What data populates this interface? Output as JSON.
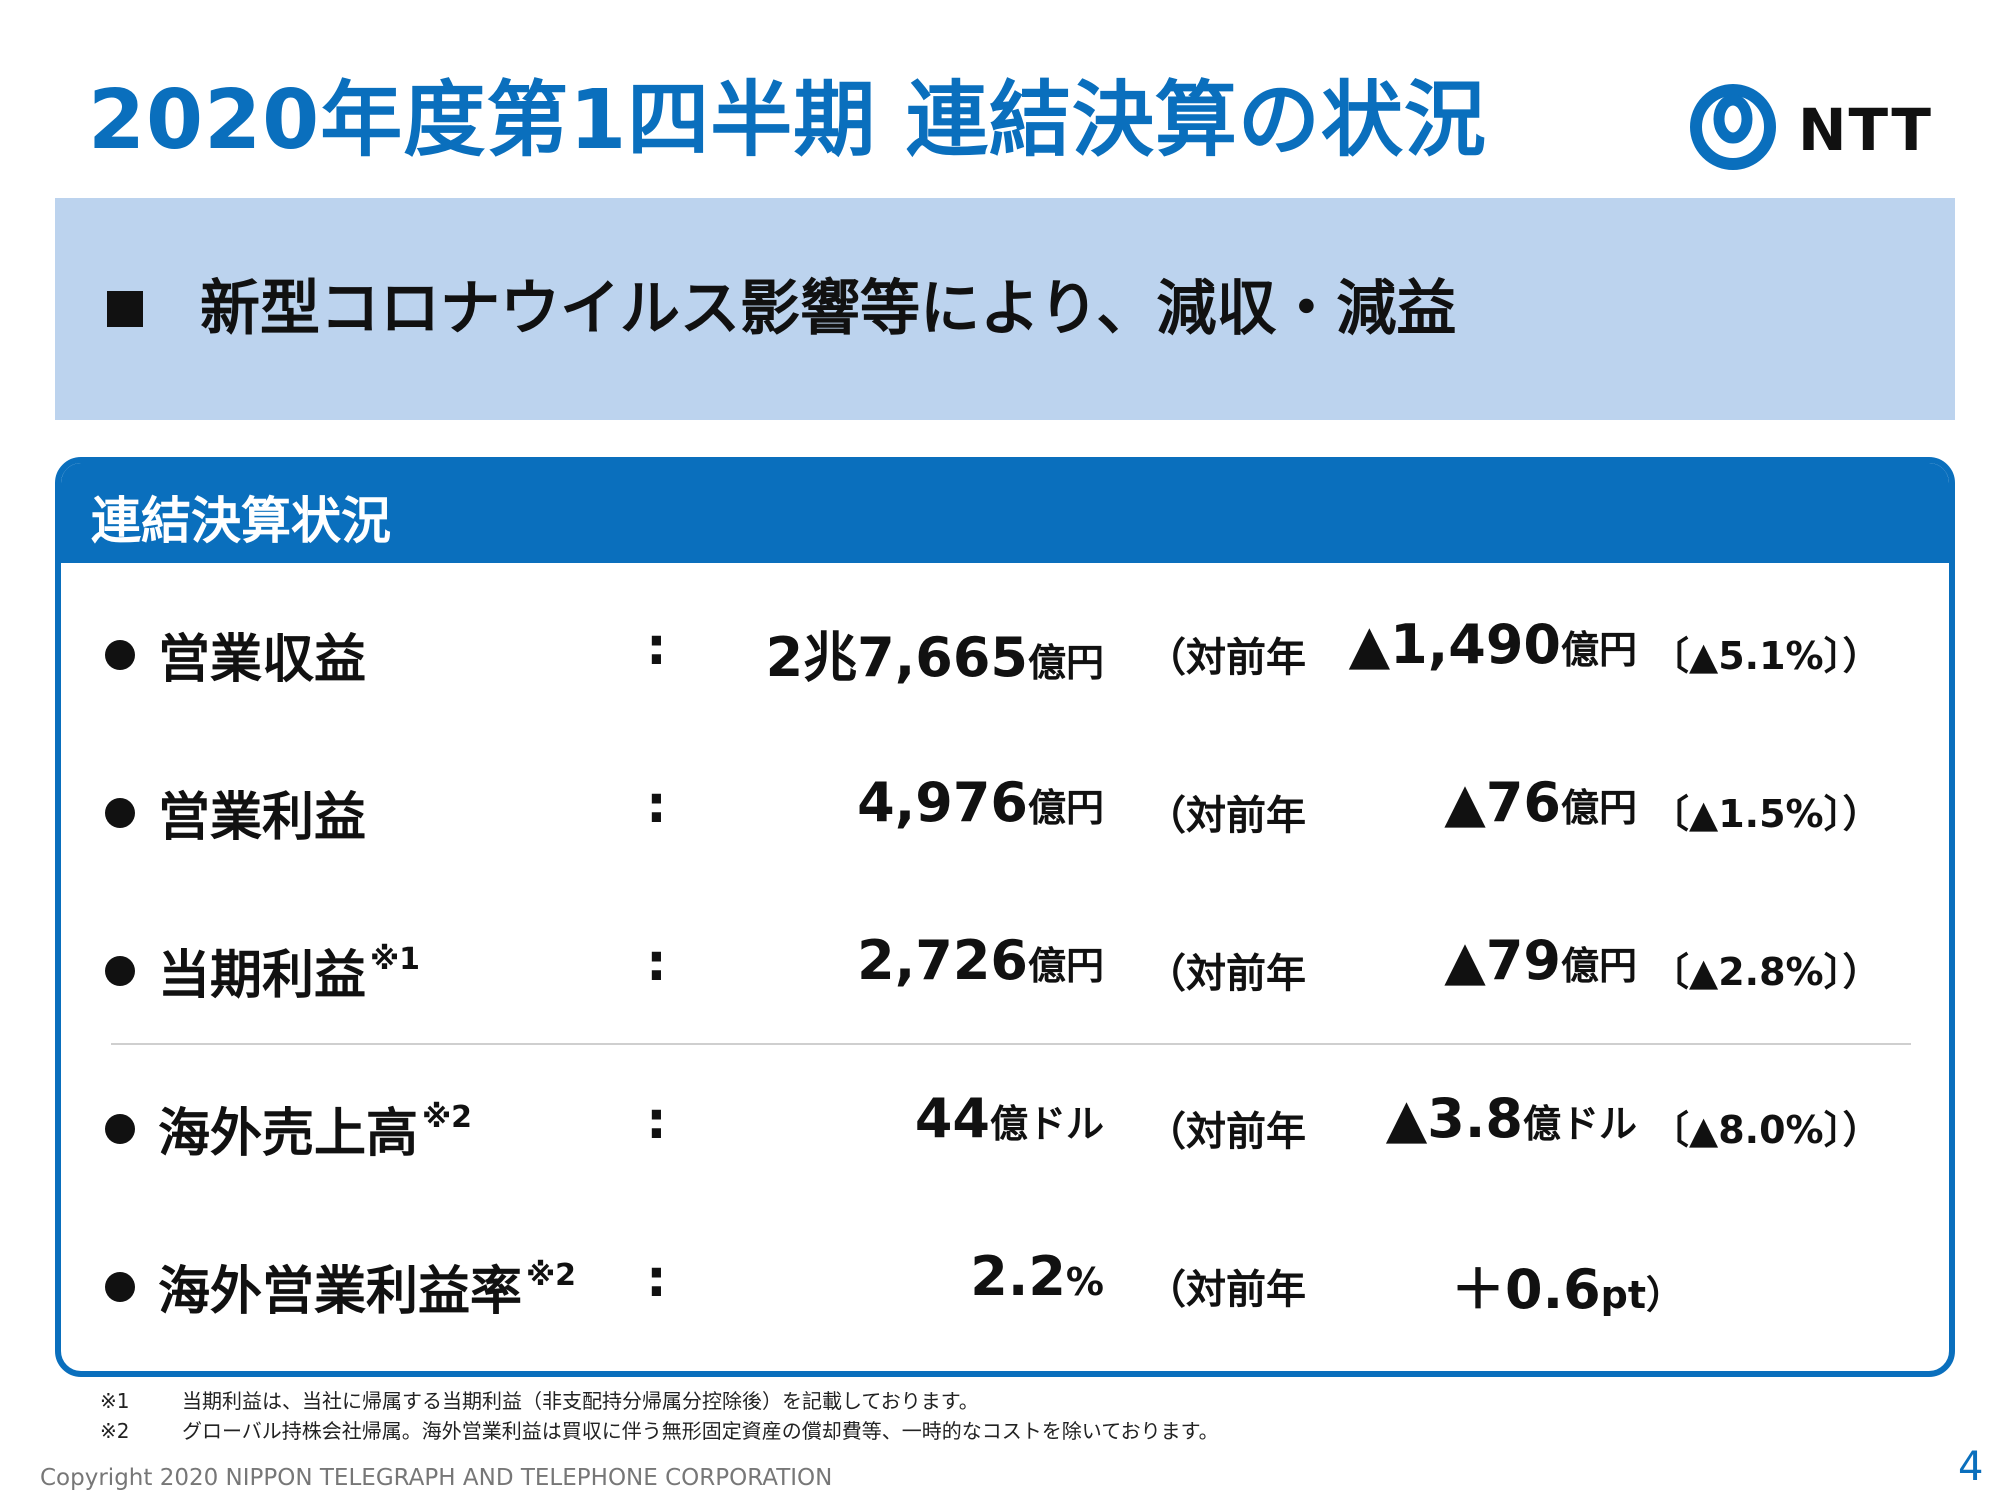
{
  "header": {
    "title": "2020年度第1四半期 連結決算の状況",
    "logo_text": "NTT"
  },
  "summary": {
    "text": "新型コロナウイルス影響等により、減収・減益"
  },
  "panel": {
    "title": "連結決算状況",
    "rows": [
      {
        "label": "営業収益",
        "note": "",
        "colon": ":",
        "value": "2兆7,665",
        "value_unit": "億円",
        "vs_label": "（対前年",
        "delta": "▲1,490",
        "delta_unit": "億円",
        "pct": "〔▲5.1%〕）"
      },
      {
        "label": "営業利益",
        "note": "",
        "colon": ":",
        "value": "4,976",
        "value_unit": "億円",
        "vs_label": "（対前年",
        "delta": "▲76",
        "delta_unit": "億円",
        "pct": "〔▲1.5%〕）"
      },
      {
        "label": "当期利益",
        "note": "※1",
        "colon": ":",
        "value": "2,726",
        "value_unit": "億円",
        "vs_label": "（対前年",
        "delta": "▲79",
        "delta_unit": "億円",
        "pct": "〔▲2.8%〕）"
      },
      {
        "label": "海外売上高",
        "note": "※2",
        "colon": ":",
        "value": "44",
        "value_unit": "億ドル",
        "vs_label": "（対前年",
        "delta": "▲3.8",
        "delta_unit": "億ドル",
        "pct": "〔▲8.0%〕）"
      },
      {
        "label": "海外営業利益率",
        "note": "※2",
        "colon": ":",
        "value": "2.2",
        "value_unit": "%",
        "vs_label": "（対前年",
        "delta": "＋0.6",
        "delta_unit": "pt）",
        "pct": ""
      }
    ]
  },
  "footnotes": [
    {
      "mark": "※1",
      "text": "当期利益は、当社に帰属する当期利益（非支配持分帰属分控除後）を記載しております。"
    },
    {
      "mark": "※2",
      "text": "グローバル持株会社帰属。海外営業利益は買収に伴う無形固定資産の償却費等、一時的なコストを除いております。"
    }
  ],
  "footer": {
    "copyright": "Copyright 2020 NIPPON TELEGRAPH AND TELEPHONE CORPORATION",
    "page": "4"
  },
  "colors": {
    "brand_blue": "#0a6fbd",
    "band_blue": "#bcd3ee"
  }
}
